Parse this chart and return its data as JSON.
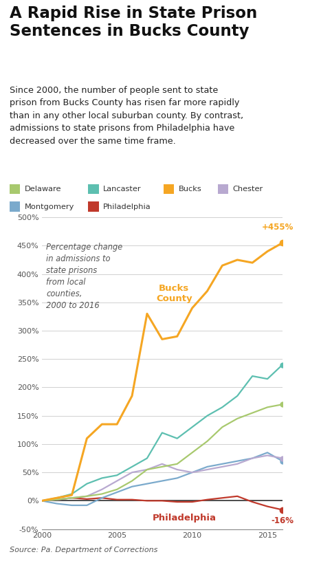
{
  "title": "A Rapid Rise in State Prison\nSentences in Bucks County",
  "subtitle": "Since 2000, the number of people sent to state\nprison from Bucks County has risen far more rapidly\nthan in any other local suburban county. By contrast,\nadmissions to state prisons from Philadelphia have\ndecreased over the same time frame.",
  "source": "Source: Pa. Department of Corrections",
  "annotation_text": "Percentage change\nin admissions to\nstate prisons\nfrom local\ncounties,\n2000 to 2016",
  "bucks_label": "Bucks\nCounty",
  "philly_label": "Philadelphia",
  "bucks_end_label": "+455%",
  "philly_end_label": "-16%",
  "years": [
    2000,
    2001,
    2002,
    2003,
    2004,
    2005,
    2006,
    2007,
    2008,
    2009,
    2010,
    2011,
    2012,
    2013,
    2014,
    2015,
    2016
  ],
  "series": {
    "Delaware": {
      "color": "#a8c96e",
      "data": [
        0,
        2,
        5,
        8,
        12,
        20,
        35,
        55,
        60,
        65,
        85,
        105,
        130,
        145,
        155,
        165,
        170
      ]
    },
    "Lancaster": {
      "color": "#5dbfb0",
      "data": [
        0,
        5,
        12,
        30,
        40,
        45,
        60,
        75,
        120,
        110,
        130,
        150,
        165,
        185,
        220,
        215,
        240
      ]
    },
    "Bucks": {
      "color": "#f5a623",
      "data": [
        0,
        5,
        10,
        110,
        135,
        135,
        185,
        330,
        285,
        290,
        340,
        370,
        415,
        425,
        420,
        440,
        455
      ]
    },
    "Chester": {
      "color": "#b8a9d0",
      "data": [
        0,
        2,
        5,
        8,
        20,
        35,
        50,
        55,
        65,
        55,
        50,
        55,
        60,
        65,
        75,
        80,
        75
      ]
    },
    "Montgomery": {
      "color": "#7baacc",
      "data": [
        0,
        -5,
        -8,
        -8,
        5,
        15,
        25,
        30,
        35,
        40,
        50,
        60,
        65,
        70,
        75,
        85,
        70
      ]
    },
    "Philadelphia": {
      "color": "#c0392b",
      "data": [
        0,
        2,
        5,
        3,
        5,
        2,
        2,
        0,
        0,
        -2,
        -2,
        2,
        5,
        8,
        -2,
        -10,
        -16
      ]
    }
  },
  "ylim": [
    -50,
    500
  ],
  "yticks": [
    -50,
    0,
    50,
    100,
    150,
    200,
    250,
    300,
    350,
    400,
    450,
    500
  ],
  "background_color": "#ffffff",
  "grid_color": "#d0d0d0"
}
